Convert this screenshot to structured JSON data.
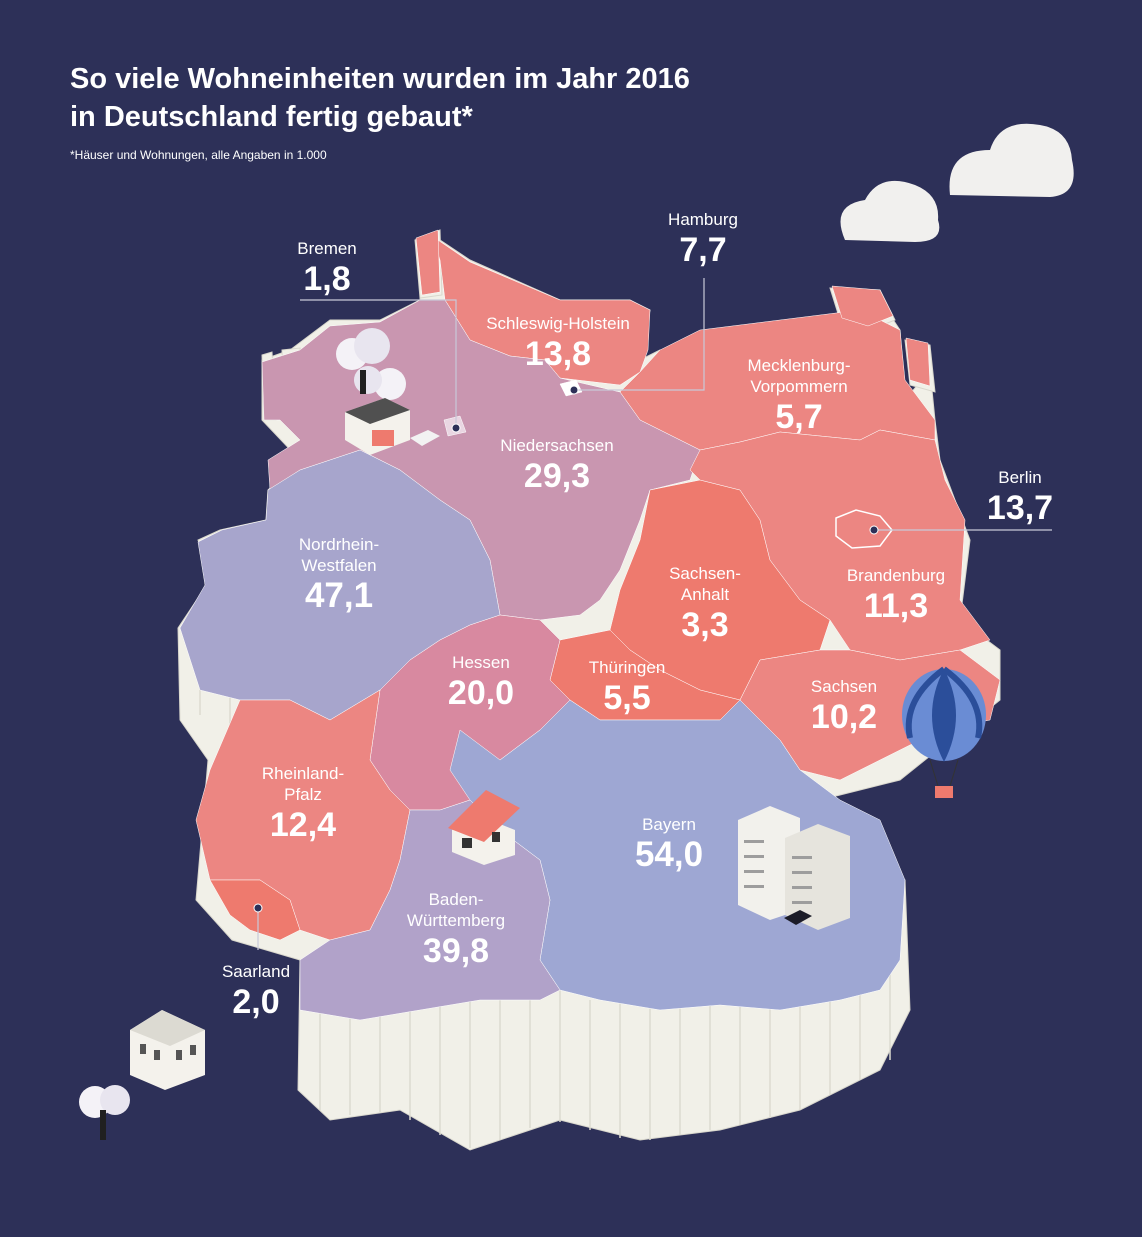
{
  "title_line1": "So viele Wohneinheiten wurden im Jahr 2016",
  "title_line2": "in Deutschland fertig gebaut*",
  "footnote": "*Häuser und Wohnungen, alle Angaben in 1.000",
  "states": {
    "schleswig_holstein": {
      "name": "Schleswig-Holstein",
      "value": "13,8"
    },
    "mecklenburg": {
      "name_line1": "Mecklenburg-",
      "name_line2": "Vorpommern",
      "value": "5,7"
    },
    "niedersachsen": {
      "name": "Niedersachsen",
      "value": "29,3"
    },
    "nrw": {
      "name_line1": "Nordrhein-",
      "name_line2": "Westfalen",
      "value": "47,1"
    },
    "sachsen_anhalt": {
      "name_line1": "Sachsen-",
      "name_line2": "Anhalt",
      "value": "3,3"
    },
    "brandenburg": {
      "name": "Brandenburg",
      "value": "11,3"
    },
    "hessen": {
      "name": "Hessen",
      "value": "20,0"
    },
    "thueringen": {
      "name": "Thüringen",
      "value": "5,5"
    },
    "sachsen": {
      "name": "Sachsen",
      "value": "10,2"
    },
    "rheinland_pfalz": {
      "name_line1": "Rheinland-",
      "name_line2": "Pfalz",
      "value": "12,4"
    },
    "bayern": {
      "name": "Bayern",
      "value": "54,0"
    },
    "baden_wuerttemberg": {
      "name_line1": "Baden-",
      "name_line2": "Württemberg",
      "value": "39,8"
    },
    "bremen": {
      "name": "Bremen",
      "value": "1,8"
    },
    "hamburg": {
      "name": "Hamburg",
      "value": "7,7"
    },
    "berlin": {
      "name": "Berlin",
      "value": "13,7"
    },
    "saarland": {
      "name": "Saarland",
      "value": "2,0"
    }
  },
  "colors": {
    "background": "#2d3058",
    "coral": "#ec8682",
    "coral_dark": "#ee7a6e",
    "mauve": "#c996b0",
    "lavender": "#a7a5cc",
    "periwinkle": "#9ea7d3",
    "extrusion": "#f1f0e8"
  }
}
